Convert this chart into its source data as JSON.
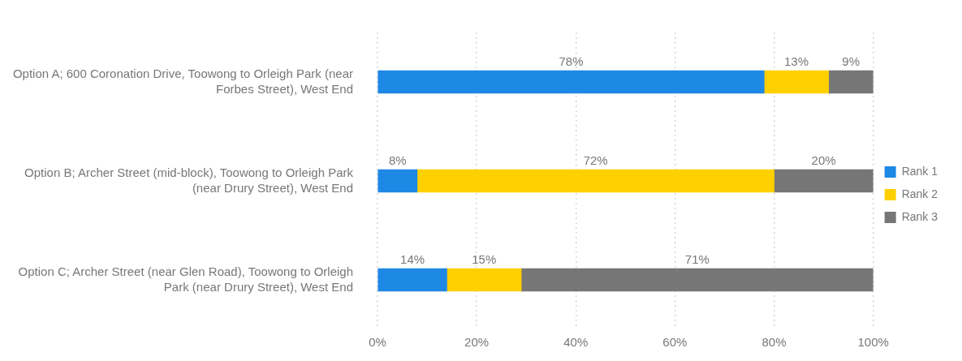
{
  "chart_data": {
    "type": "bar",
    "orientation": "horizontal",
    "stacked": true,
    "categories": [
      "Option A; 600 Coronation Drive, Toowong to Orleigh Park (near Forbes Street), West End",
      "Option B; Archer Street (mid-block), Toowong to Orleigh Park (near Drury Street), West End",
      "Option C; Archer Street (near Glen Road), Toowong to Orleigh Park (near Drury Street), West End"
    ],
    "series": [
      {
        "name": "Rank 1",
        "color": "#1e88e5",
        "values": [
          78,
          8,
          14
        ],
        "value_labels": [
          "78%",
          "8%",
          "14%"
        ]
      },
      {
        "name": "Rank 2",
        "color": "#ffd000",
        "values": [
          13,
          72,
          15
        ],
        "value_labels": [
          "13%",
          "72%",
          "15%"
        ]
      },
      {
        "name": "Rank 3",
        "color": "#767676",
        "values": [
          9,
          20,
          71
        ],
        "value_labels": [
          "9%",
          "20%",
          "71%"
        ]
      }
    ],
    "xlim": [
      0,
      100
    ],
    "xticks": [
      {
        "value": 0,
        "label": "0%"
      },
      {
        "value": 20,
        "label": "20%"
      },
      {
        "value": 40,
        "label": "40%"
      },
      {
        "value": 60,
        "label": "60%"
      },
      {
        "value": 80,
        "label": "80%"
      },
      {
        "value": 100,
        "label": "100%"
      }
    ],
    "grid": "x",
    "legend": "right"
  }
}
